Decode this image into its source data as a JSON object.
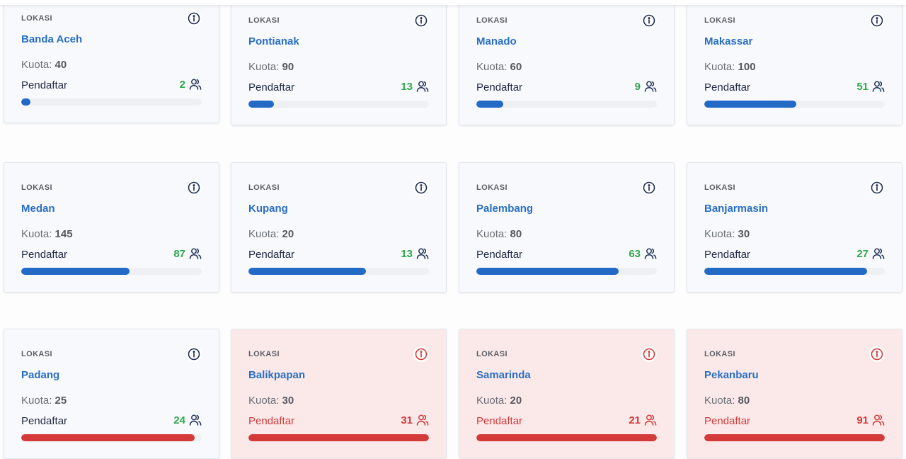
{
  "label": "LOKASI",
  "quota_label": "Kuota:",
  "registrants_label": "Pendaftar",
  "colors": {
    "blue": "#2369c6",
    "red": "#d53a3a",
    "green": "#2fa84a"
  },
  "cards": [
    {
      "name": "Banda Aceh",
      "quota": "40",
      "registrants": "2",
      "fill_percent": 5,
      "status": "normal"
    },
    {
      "name": "Pontianak",
      "quota": "90",
      "registrants": "13",
      "fill_percent": 14,
      "status": "normal"
    },
    {
      "name": "Manado",
      "quota": "60",
      "registrants": "9",
      "fill_percent": 15,
      "status": "normal"
    },
    {
      "name": "Makassar",
      "quota": "100",
      "registrants": "51",
      "fill_percent": 51,
      "status": "normal"
    },
    {
      "name": "Medan",
      "quota": "145",
      "registrants": "87",
      "fill_percent": 60,
      "status": "normal"
    },
    {
      "name": "Kupang",
      "quota": "20",
      "registrants": "13",
      "fill_percent": 65,
      "status": "normal"
    },
    {
      "name": "Palembang",
      "quota": "80",
      "registrants": "63",
      "fill_percent": 79,
      "status": "normal"
    },
    {
      "name": "Banjarmasin",
      "quota": "30",
      "registrants": "27",
      "fill_percent": 90,
      "status": "normal"
    },
    {
      "name": "Padang",
      "quota": "25",
      "registrants": "24",
      "fill_percent": 96,
      "status": "near-full"
    },
    {
      "name": "Balikpapan",
      "quota": "30",
      "registrants": "31",
      "fill_percent": 100,
      "status": "over"
    },
    {
      "name": "Samarinda",
      "quota": "20",
      "registrants": "21",
      "fill_percent": 100,
      "status": "over"
    },
    {
      "name": "Pekanbaru",
      "quota": "80",
      "registrants": "91",
      "fill_percent": 100,
      "status": "over"
    }
  ]
}
